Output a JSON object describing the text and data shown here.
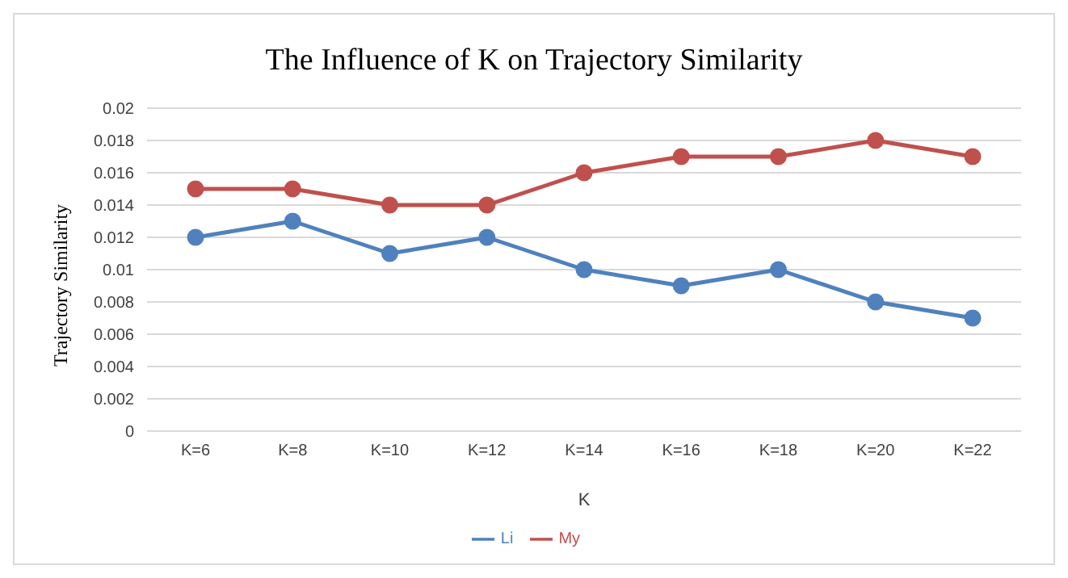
{
  "chart_data": {
    "type": "line",
    "title": "The Influence of K on Trajectory Similarity",
    "xlabel": "K",
    "ylabel": "Trajectory Similarity",
    "categories": [
      "K=6",
      "K=8",
      "K=10",
      "K=12",
      "K=14",
      "K=16",
      "K=18",
      "K=20",
      "K=22"
    ],
    "series": [
      {
        "name": "Li",
        "color": "#4f81bd",
        "values": [
          0.012,
          0.013,
          0.011,
          0.012,
          0.01,
          0.009,
          0.01,
          0.008,
          0.007
        ]
      },
      {
        "name": "My",
        "color": "#c0504d",
        "values": [
          0.015,
          0.015,
          0.014,
          0.014,
          0.016,
          0.017,
          0.017,
          0.018,
          0.017
        ]
      }
    ],
    "ylim": [
      0,
      0.02
    ],
    "yticks": [
      0,
      0.002,
      0.004,
      0.006,
      0.008,
      0.01,
      0.012,
      0.014,
      0.016,
      0.018,
      0.02
    ],
    "grid": "y",
    "legend": "bottom",
    "marker": "circle",
    "line_style": "solid"
  }
}
